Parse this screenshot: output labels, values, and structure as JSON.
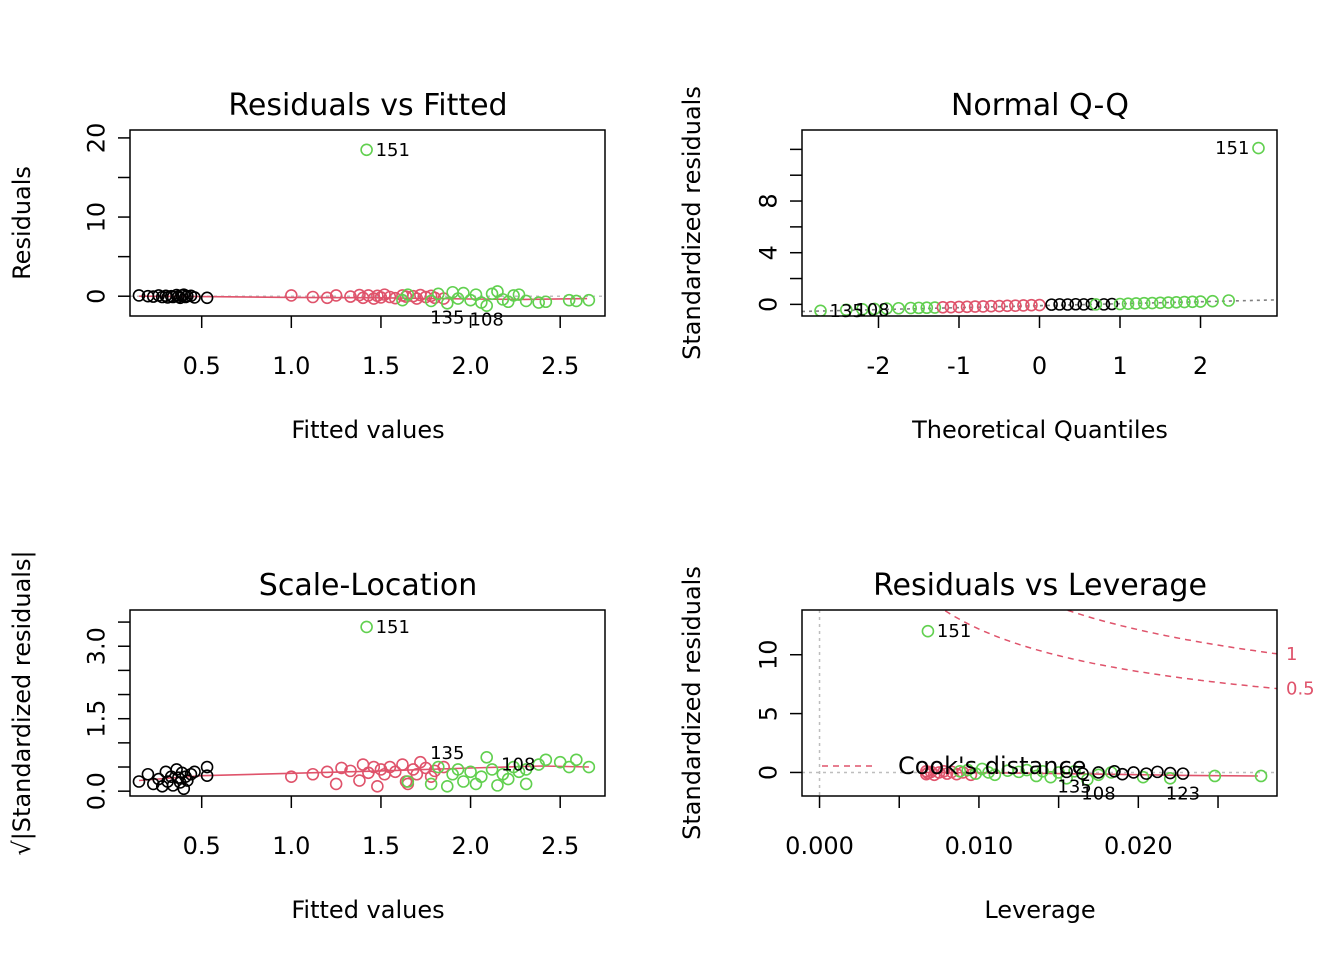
{
  "colors": {
    "black": "#000000",
    "red": "#DF536B",
    "green": "#61D04F",
    "gray": "#808080",
    "lightgray": "#BEBEBE"
  },
  "chart_data": [
    {
      "type": "scatter",
      "title": "Residuals vs Fitted",
      "xlabel": "Fitted values",
      "ylabel": "Residuals",
      "xlim": [
        0.1,
        2.75
      ],
      "ylim": [
        -2.5,
        21
      ],
      "xticks": [
        "0.5",
        "1.0",
        "1.5",
        "2.0",
        "2.5"
      ],
      "xtick_values": [
        0.5,
        1.0,
        1.5,
        2.0,
        2.5
      ],
      "yticks": [
        "0",
        "10",
        "20"
      ],
      "ytick_values": [
        0,
        10,
        20
      ],
      "y_minor_ticks": [
        5,
        15
      ],
      "refline_y": 0,
      "smooth": [
        [
          0.15,
          0.0
        ],
        [
          0.5,
          -0.05
        ],
        [
          1.0,
          -0.15
        ],
        [
          1.5,
          -0.2
        ],
        [
          2.0,
          -0.35
        ],
        [
          2.3,
          -0.4
        ],
        [
          2.65,
          -0.3
        ]
      ],
      "series": [
        {
          "color": "black",
          "x": [
            0.15,
            0.2,
            0.23,
            0.26,
            0.28,
            0.3,
            0.31,
            0.33,
            0.34,
            0.36,
            0.37,
            0.38,
            0.39,
            0.4,
            0.41,
            0.42,
            0.44,
            0.46,
            0.53
          ],
          "y": [
            0.1,
            0.0,
            -0.05,
            0.1,
            -0.1,
            0.05,
            -0.15,
            0.0,
            -0.1,
            0.15,
            -0.05,
            -0.2,
            0.1,
            0.2,
            -0.1,
            0.0,
            0.05,
            -0.15,
            -0.2
          ]
        },
        {
          "color": "red",
          "x": [
            1.0,
            1.12,
            1.2,
            1.25,
            1.33,
            1.38,
            1.4,
            1.43,
            1.46,
            1.48,
            1.5,
            1.52,
            1.55,
            1.58,
            1.62,
            1.64,
            1.68,
            1.7,
            1.72,
            1.75,
            1.78,
            1.8,
            1.85
          ],
          "y": [
            0.1,
            -0.1,
            -0.2,
            0.1,
            -0.05,
            0.15,
            -0.2,
            0.1,
            -0.3,
            0.05,
            -0.15,
            0.2,
            -0.1,
            -0.25,
            0.1,
            -0.05,
            0.0,
            -0.3,
            0.15,
            -0.1,
            0.05,
            -0.2,
            -0.3
          ]
        },
        {
          "color": "green",
          "x": [
            1.42,
            1.62,
            1.65,
            1.78,
            1.82,
            1.87,
            1.9,
            1.93,
            1.96,
            2.0,
            2.03,
            2.06,
            2.09,
            2.12,
            2.15,
            2.18,
            2.21,
            2.24,
            2.27,
            2.31,
            2.38,
            2.42,
            2.55,
            2.59,
            2.66
          ],
          "y": [
            18.5,
            -0.5,
            0.2,
            -0.6,
            0.3,
            -0.9,
            0.5,
            -0.3,
            0.4,
            -0.5,
            0.2,
            -0.8,
            -1.2,
            0.3,
            0.6,
            -0.4,
            -0.7,
            0.1,
            0.2,
            -0.6,
            -0.8,
            -0.7,
            -0.5,
            -0.6,
            -0.5
          ]
        }
      ],
      "labels": [
        {
          "text": "151",
          "x": 1.42,
          "y": 18.5,
          "side": "right"
        },
        {
          "text": "135",
          "x": 1.87,
          "y": -0.9,
          "side": "below"
        },
        {
          "text": "108",
          "x": 2.09,
          "y": -1.2,
          "side": "below"
        }
      ]
    },
    {
      "type": "scatter",
      "title": "Normal Q-Q",
      "xlabel": "Theoretical Quantiles",
      "ylabel": "Standardized residuals",
      "xlim": [
        -2.95,
        2.95
      ],
      "ylim": [
        -0.9,
        13.5
      ],
      "xticks": [
        "-2",
        "-1",
        "0",
        "1",
        "2"
      ],
      "xtick_values": [
        -2,
        -1,
        0,
        1,
        2
      ],
      "yticks": [
        "0",
        "4",
        "8"
      ],
      "ytick_values": [
        0,
        4,
        8
      ],
      "y_minor_ticks": [
        2,
        6,
        10,
        12
      ],
      "refline": [
        [
          -2.95,
          -0.55
        ],
        [
          2.95,
          0.35
        ]
      ],
      "series": [
        {
          "color": "green",
          "x": [
            -2.72,
            -2.4,
            -2.2,
            -2.05,
            -1.9,
            -1.75,
            -1.6,
            -1.5,
            -1.4,
            -1.3
          ],
          "y": [
            -0.5,
            -0.42,
            -0.38,
            -0.35,
            -0.32,
            -0.3,
            -0.28,
            -0.27,
            -0.26,
            -0.25
          ]
        },
        {
          "color": "red",
          "x": [
            -1.2,
            -1.1,
            -1.0,
            -0.9,
            -0.8,
            -0.7,
            -0.6,
            -0.5,
            -0.4,
            -0.3,
            -0.2,
            -0.1,
            0.0
          ],
          "y": [
            -0.23,
            -0.22,
            -0.2,
            -0.19,
            -0.17,
            -0.16,
            -0.14,
            -0.13,
            -0.11,
            -0.1,
            -0.08,
            -0.06,
            -0.05
          ]
        },
        {
          "color": "black",
          "x": [
            0.15,
            0.25,
            0.35,
            0.45,
            0.55,
            0.65,
            0.8,
            0.9
          ],
          "y": [
            -0.02,
            0.0,
            -0.01,
            0.01,
            0.0,
            0.02,
            0.0,
            0.03
          ]
        },
        {
          "color": "green",
          "x": [
            0.7,
            1.0,
            1.1,
            1.2,
            1.3,
            1.4,
            1.5,
            1.6,
            1.7,
            1.8,
            1.9,
            2.0,
            2.15,
            2.35,
            2.72
          ],
          "y": [
            0.0,
            0.03,
            0.05,
            0.07,
            0.09,
            0.1,
            0.12,
            0.14,
            0.16,
            0.18,
            0.2,
            0.22,
            0.25,
            0.3,
            12.1
          ]
        }
      ],
      "labels": [
        {
          "text": "151",
          "x": 2.72,
          "y": 12.1,
          "side": "left"
        },
        {
          "text": "135",
          "x": -2.72,
          "y": -0.5,
          "side": "right"
        },
        {
          "text": "108",
          "x": -2.4,
          "y": -0.42,
          "side": "right"
        }
      ]
    },
    {
      "type": "scatter",
      "title": "Scale-Location",
      "xlabel": "Fitted values",
      "ylabel": "√|Standardized residuals|",
      "xlim": [
        0.1,
        2.75
      ],
      "ylim": [
        -0.1,
        3.75
      ],
      "xticks": [
        "0.5",
        "1.0",
        "1.5",
        "2.0",
        "2.5"
      ],
      "xtick_values": [
        0.5,
        1.0,
        1.5,
        2.0,
        2.5
      ],
      "yticks": [
        "0.0",
        "1.5",
        "3.0"
      ],
      "ytick_values": [
        0.0,
        1.5,
        3.0
      ],
      "y_minor_ticks": [
        0.5,
        1.0,
        2.0,
        2.5,
        3.5
      ],
      "smooth": [
        [
          0.15,
          0.22
        ],
        [
          0.5,
          0.32
        ],
        [
          1.0,
          0.37
        ],
        [
          1.5,
          0.42
        ],
        [
          2.0,
          0.48
        ],
        [
          2.4,
          0.52
        ],
        [
          2.66,
          0.5
        ]
      ],
      "series": [
        {
          "color": "black",
          "x": [
            0.15,
            0.2,
            0.23,
            0.26,
            0.28,
            0.3,
            0.31,
            0.33,
            0.34,
            0.36,
            0.37,
            0.38,
            0.39,
            0.4,
            0.41,
            0.42,
            0.44,
            0.46,
            0.53,
            0.53
          ],
          "y": [
            0.2,
            0.35,
            0.15,
            0.25,
            0.1,
            0.4,
            0.2,
            0.3,
            0.12,
            0.45,
            0.28,
            0.18,
            0.38,
            0.05,
            0.3,
            0.22,
            0.35,
            0.4,
            0.5,
            0.32
          ]
        },
        {
          "color": "red",
          "x": [
            1.0,
            1.12,
            1.2,
            1.25,
            1.28,
            1.33,
            1.38,
            1.4,
            1.43,
            1.46,
            1.48,
            1.5,
            1.52,
            1.55,
            1.58,
            1.62,
            1.64,
            1.65,
            1.68,
            1.7,
            1.72,
            1.75,
            1.78,
            1.8,
            1.85
          ],
          "y": [
            0.3,
            0.35,
            0.4,
            0.15,
            0.48,
            0.42,
            0.22,
            0.55,
            0.38,
            0.5,
            0.1,
            0.45,
            0.35,
            0.5,
            0.4,
            0.55,
            0.2,
            0.15,
            0.45,
            0.35,
            0.6,
            0.48,
            0.3,
            0.42,
            0.5
          ]
        },
        {
          "color": "green",
          "x": [
            1.42,
            1.65,
            1.78,
            1.82,
            1.87,
            1.9,
            1.93,
            1.96,
            2.0,
            2.03,
            2.06,
            2.09,
            2.12,
            2.15,
            2.18,
            2.21,
            2.24,
            2.27,
            2.31,
            2.31,
            2.38,
            2.42,
            2.5,
            2.55,
            2.59,
            2.66
          ],
          "y": [
            3.4,
            0.2,
            0.15,
            0.5,
            0.1,
            0.35,
            0.45,
            0.2,
            0.4,
            0.15,
            0.3,
            0.7,
            0.45,
            0.12,
            0.35,
            0.25,
            0.5,
            0.4,
            0.15,
            0.45,
            0.55,
            0.65,
            0.6,
            0.5,
            0.65,
            0.5
          ]
        }
      ],
      "labels": [
        {
          "text": "151",
          "x": 1.42,
          "y": 3.4,
          "side": "right"
        },
        {
          "text": "135",
          "x": 1.87,
          "y": 0.5,
          "side": "above"
        },
        {
          "text": "108",
          "x": 2.12,
          "y": 0.55,
          "side": "right"
        }
      ]
    },
    {
      "type": "scatter",
      "title": "Residuals vs Leverage",
      "xlabel": "Leverage",
      "ylabel": "Standardized residuals",
      "xlim": [
        -0.0011,
        0.0287
      ],
      "ylim": [
        -2.0,
        13.8
      ],
      "xticks": [
        "0.000",
        "0.010",
        "0.020"
      ],
      "xtick_values": [
        0.0,
        0.01,
        0.02
      ],
      "x_minor_ticks": [
        0.005,
        0.015,
        0.025
      ],
      "yticks": [
        "0",
        "5",
        "10"
      ],
      "ytick_values": [
        0,
        5,
        10
      ],
      "refline_y": 0,
      "refline_x": 0,
      "legend": {
        "text": "Cook's distance",
        "position": "bottom-left"
      },
      "cooks_levels": [
        {
          "label": "1",
          "level": 1
        },
        {
          "label": "0.5",
          "level": 0.5
        }
      ],
      "n_params": 3,
      "smooth": [
        [
          0.0067,
          0.0
        ],
        [
          0.012,
          -0.05
        ],
        [
          0.018,
          -0.15
        ],
        [
          0.023,
          -0.25
        ],
        [
          0.0275,
          -0.3
        ]
      ],
      "series": [
        {
          "color": "red",
          "x": [
            0.0067,
            0.0067,
            0.0068,
            0.007,
            0.0072,
            0.0075,
            0.0078,
            0.008,
            0.0083,
            0.0086,
            0.009,
            0.0095
          ],
          "y": [
            0.1,
            -0.15,
            -0.05,
            0.05,
            -0.2,
            0.0,
            0.1,
            -0.1,
            0.05,
            -0.15,
            0.0,
            -0.2
          ]
        },
        {
          "color": "green",
          "x": [
            0.0068,
            0.0088,
            0.0093,
            0.0098,
            0.0102,
            0.0106,
            0.011,
            0.0118,
            0.0125,
            0.013,
            0.0136,
            0.014,
            0.0145,
            0.015,
            0.0155,
            0.016,
            0.0168,
            0.0175,
            0.0183,
            0.0203,
            0.022,
            0.0248,
            0.0277
          ],
          "y": [
            12.0,
            0.1,
            0.2,
            -0.1,
            0.3,
            0.0,
            -0.2,
            0.15,
            0.05,
            0.2,
            -0.3,
            0.1,
            -0.4,
            0.0,
            -0.5,
            0.1,
            -0.6,
            -0.2,
            0.0,
            -0.4,
            -0.5,
            -0.3,
            -0.3
          ]
        },
        {
          "color": "black",
          "x": [
            0.0155,
            0.0165,
            0.0175,
            0.0185,
            0.019,
            0.0197,
            0.0205,
            0.0212,
            0.022,
            0.0228
          ],
          "y": [
            0.05,
            -0.1,
            0.0,
            0.1,
            -0.15,
            0.0,
            -0.1,
            0.05,
            -0.05,
            -0.1
          ]
        }
      ],
      "labels": [
        {
          "text": "151",
          "x": 0.0068,
          "y": 12.0,
          "side": "right"
        },
        {
          "text": "108",
          "x": 0.0175,
          "y": -0.6,
          "side": "below"
        },
        {
          "text": "123",
          "x": 0.0228,
          "y": -0.6,
          "side": "below"
        },
        {
          "text": "135",
          "x": 0.016,
          "y": 0.0,
          "side": "below"
        }
      ]
    }
  ]
}
